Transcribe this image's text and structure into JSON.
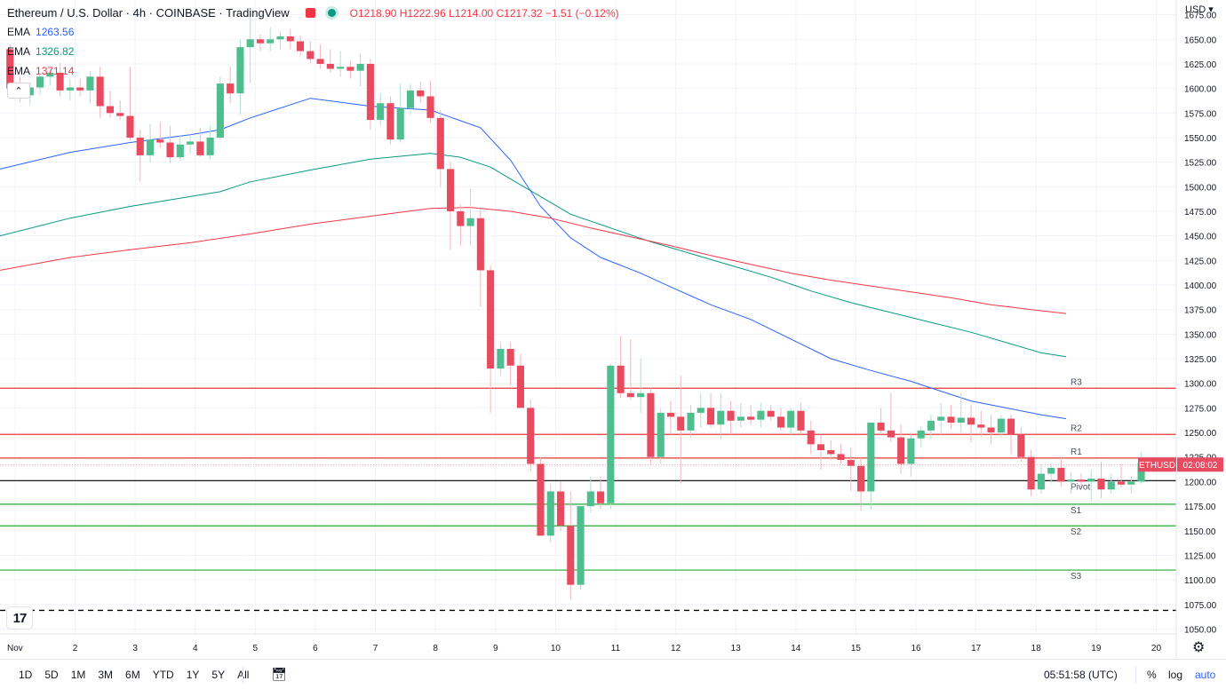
{
  "header": {
    "title": "Ethereum / U.S. Dollar · 4h · COINBASE · TradingView",
    "open": "O1218.90",
    "high": "H1222.96",
    "low": "L1214.00",
    "close": "C1217.32",
    "change": "−1.51 (−0.12%)"
  },
  "emas": [
    {
      "label": "EMA",
      "value": "1263.56",
      "color": "#2962ff"
    },
    {
      "label": "EMA",
      "value": "1326.82",
      "color": "#089981"
    },
    {
      "label": "EMA",
      "value": "1371.14",
      "color": "#f23645"
    }
  ],
  "currency_button": "USD",
  "logo_text": "17",
  "bottom_bar": {
    "timeframes": [
      "1D",
      "5D",
      "1M",
      "3M",
      "6M",
      "YTD",
      "1Y",
      "5Y",
      "All"
    ],
    "clock": "05:51:58 (UTC)",
    "percent": "%",
    "log": "log",
    "auto": "auto"
  },
  "price_label": {
    "symbol": "ETHUSD",
    "price": "1217.32",
    "countdown": "02:08:02"
  },
  "colors": {
    "up": "#26a69a",
    "up_fill": "#4fbe8f",
    "down": "#e84a5f",
    "ema_fast": "#2962ff",
    "ema_mid": "#089981",
    "ema_slow": "#f23645",
    "pivot": "#000000",
    "resistance": "#e53935",
    "support": "#22ab30"
  },
  "chart_data": {
    "type": "candlestick",
    "ylim": [
      1045,
      1690
    ],
    "y_ticks": [
      1050,
      1075,
      1100,
      1125,
      1150,
      1175,
      1200,
      1225,
      1250,
      1275,
      1300,
      1325,
      1350,
      1375,
      1400,
      1425,
      1450,
      1475,
      1500,
      1525,
      1550,
      1575,
      1600,
      1625,
      1650,
      1675
    ],
    "x_ticks": [
      "Nov",
      "2",
      "3",
      "4",
      "5",
      "6",
      "7",
      "8",
      "9",
      "10",
      "11",
      "12",
      "13",
      "14",
      "15",
      "16",
      "17",
      "18",
      "19",
      "20"
    ],
    "x_tick_pos": [
      0.5,
      6.5,
      12.5,
      18.5,
      24.5,
      30.5,
      36.5,
      42.5,
      48.5,
      54.5,
      60.5,
      66.5,
      72.5,
      78.5,
      84.5,
      90.5,
      96.5,
      102.5,
      108.5,
      114.5
    ],
    "x_range": [
      -1,
      116.5
    ],
    "levels": [
      {
        "name": "R3",
        "value": 1295,
        "kind": "resistance"
      },
      {
        "name": "R2",
        "value": 1248,
        "kind": "resistance"
      },
      {
        "name": "R1",
        "value": 1224,
        "kind": "resistance"
      },
      {
        "name": "Pivot",
        "value": 1201,
        "kind": "pivot"
      },
      {
        "name": "S1",
        "value": 1177,
        "kind": "support"
      },
      {
        "name": "S2",
        "value": 1155,
        "kind": "support"
      },
      {
        "name": "S3",
        "value": 1110,
        "kind": "support"
      }
    ],
    "dashed_level": 1069,
    "candles": [
      [
        1640,
        1645,
        1590,
        1600
      ],
      [
        1600,
        1612,
        1586,
        1593
      ],
      [
        1593,
        1606,
        1583,
        1601
      ],
      [
        1601,
        1614,
        1593,
        1612
      ],
      [
        1612,
        1620,
        1603,
        1616
      ],
      [
        1616,
        1626,
        1592,
        1598
      ],
      [
        1598,
        1610,
        1588,
        1601
      ],
      [
        1601,
        1610,
        1592,
        1598
      ],
      [
        1598,
        1618,
        1585,
        1612
      ],
      [
        1612,
        1622,
        1570,
        1582
      ],
      [
        1582,
        1598,
        1570,
        1575
      ],
      [
        1575,
        1588,
        1568,
        1572
      ],
      [
        1572,
        1622,
        1547,
        1550
      ],
      [
        1550,
        1558,
        1505,
        1532
      ],
      [
        1532,
        1564,
        1525,
        1548
      ],
      [
        1548,
        1566,
        1540,
        1545
      ],
      [
        1545,
        1562,
        1524,
        1530
      ],
      [
        1530,
        1552,
        1526,
        1543
      ],
      [
        1543,
        1554,
        1534,
        1546
      ],
      [
        1546,
        1560,
        1530,
        1532
      ],
      [
        1532,
        1562,
        1528,
        1550
      ],
      [
        1550,
        1612,
        1548,
        1605
      ],
      [
        1605,
        1622,
        1585,
        1595
      ],
      [
        1595,
        1650,
        1573,
        1642
      ],
      [
        1642,
        1678,
        1605,
        1650
      ],
      [
        1650,
        1655,
        1638,
        1646
      ],
      [
        1646,
        1662,
        1638,
        1650
      ],
      [
        1650,
        1658,
        1640,
        1653
      ],
      [
        1653,
        1660,
        1640,
        1648
      ],
      [
        1648,
        1654,
        1633,
        1638
      ],
      [
        1638,
        1648,
        1626,
        1630
      ],
      [
        1630,
        1645,
        1620,
        1625
      ],
      [
        1625,
        1640,
        1616,
        1620
      ],
      [
        1620,
        1638,
        1612,
        1622
      ],
      [
        1622,
        1628,
        1610,
        1618
      ],
      [
        1618,
        1635,
        1602,
        1625
      ],
      [
        1625,
        1630,
        1558,
        1568
      ],
      [
        1568,
        1595,
        1562,
        1585
      ],
      [
        1585,
        1592,
        1543,
        1548
      ],
      [
        1548,
        1605,
        1545,
        1580
      ],
      [
        1580,
        1604,
        1573,
        1598
      ],
      [
        1598,
        1607,
        1586,
        1592
      ],
      [
        1592,
        1608,
        1565,
        1570
      ],
      [
        1570,
        1578,
        1500,
        1518
      ],
      [
        1518,
        1525,
        1436,
        1475
      ],
      [
        1475,
        1482,
        1440,
        1460
      ],
      [
        1460,
        1498,
        1440,
        1468
      ],
      [
        1468,
        1478,
        1378,
        1415
      ],
      [
        1415,
        1420,
        1270,
        1315
      ],
      [
        1315,
        1342,
        1308,
        1335
      ],
      [
        1335,
        1342,
        1298,
        1318
      ],
      [
        1318,
        1330,
        1275,
        1275
      ],
      [
        1275,
        1283,
        1210,
        1218
      ],
      [
        1218,
        1225,
        1145,
        1145
      ],
      [
        1145,
        1198,
        1138,
        1190
      ],
      [
        1190,
        1200,
        1150,
        1155
      ],
      [
        1155,
        1190,
        1080,
        1095
      ],
      [
        1095,
        1175,
        1090,
        1175
      ],
      [
        1175,
        1205,
        1168,
        1190
      ],
      [
        1190,
        1205,
        1172,
        1178
      ],
      [
        1178,
        1320,
        1172,
        1318
      ],
      [
        1318,
        1348,
        1285,
        1290
      ],
      [
        1290,
        1345,
        1283,
        1286
      ],
      [
        1286,
        1325,
        1270,
        1290
      ],
      [
        1290,
        1295,
        1218,
        1225
      ],
      [
        1225,
        1275,
        1218,
        1270
      ],
      [
        1270,
        1282,
        1248,
        1266
      ],
      [
        1266,
        1308,
        1198,
        1252
      ],
      [
        1252,
        1278,
        1245,
        1270
      ],
      [
        1270,
        1290,
        1255,
        1275
      ],
      [
        1275,
        1290,
        1255,
        1258
      ],
      [
        1258,
        1290,
        1243,
        1272
      ],
      [
        1272,
        1282,
        1248,
        1262
      ],
      [
        1262,
        1280,
        1255,
        1266
      ],
      [
        1266,
        1278,
        1258,
        1263
      ],
      [
        1263,
        1280,
        1255,
        1272
      ],
      [
        1272,
        1278,
        1262,
        1266
      ],
      [
        1266,
        1275,
        1252,
        1255
      ],
      [
        1255,
        1275,
        1248,
        1272
      ],
      [
        1272,
        1280,
        1248,
        1252
      ],
      [
        1252,
        1262,
        1228,
        1238
      ],
      [
        1238,
        1248,
        1212,
        1232
      ],
      [
        1232,
        1242,
        1222,
        1228
      ],
      [
        1228,
        1238,
        1218,
        1222
      ],
      [
        1222,
        1235,
        1190,
        1216
      ],
      [
        1216,
        1225,
        1170,
        1190
      ],
      [
        1190,
        1260,
        1172,
        1260
      ],
      [
        1260,
        1275,
        1248,
        1252
      ],
      [
        1252,
        1290,
        1240,
        1245
      ],
      [
        1245,
        1258,
        1208,
        1218
      ],
      [
        1218,
        1250,
        1205,
        1244
      ],
      [
        1244,
        1256,
        1235,
        1252
      ],
      [
        1252,
        1268,
        1243,
        1262
      ],
      [
        1262,
        1280,
        1248,
        1266
      ],
      [
        1266,
        1278,
        1254,
        1260
      ],
      [
        1260,
        1290,
        1250,
        1265
      ],
      [
        1265,
        1278,
        1240,
        1258
      ],
      [
        1258,
        1272,
        1245,
        1255
      ],
      [
        1255,
        1268,
        1238,
        1250
      ],
      [
        1250,
        1268,
        1245,
        1264
      ],
      [
        1264,
        1268,
        1228,
        1248
      ],
      [
        1248,
        1255,
        1220,
        1225
      ],
      [
        1225,
        1232,
        1185,
        1192
      ],
      [
        1192,
        1218,
        1188,
        1208
      ],
      [
        1208,
        1218,
        1198,
        1214
      ],
      [
        1214,
        1225,
        1195,
        1200
      ],
      [
        1200,
        1210,
        1188,
        1202
      ],
      [
        1202,
        1208,
        1195,
        1200
      ],
      [
        1200,
        1212,
        1180,
        1203
      ],
      [
        1203,
        1220,
        1183,
        1192
      ],
      [
        1192,
        1208,
        1188,
        1200
      ],
      [
        1200,
        1218,
        1194,
        1197
      ],
      [
        1197,
        1205,
        1188,
        1200
      ],
      [
        1200,
        1230,
        1198,
        1219
      ],
      [
        1219,
        1223,
        1214,
        1217
      ]
    ],
    "ema_fast": [
      [
        -1,
        1518
      ],
      [
        6,
        1535
      ],
      [
        12,
        1545
      ],
      [
        18,
        1553
      ],
      [
        21,
        1558
      ],
      [
        24,
        1570
      ],
      [
        30,
        1590
      ],
      [
        36,
        1582
      ],
      [
        42,
        1578
      ],
      [
        47,
        1560
      ],
      [
        50,
        1527
      ],
      [
        53,
        1480
      ],
      [
        56,
        1448
      ],
      [
        59,
        1428
      ],
      [
        63,
        1412
      ],
      [
        66,
        1398
      ],
      [
        70,
        1380
      ],
      [
        74,
        1365
      ],
      [
        78,
        1345
      ],
      [
        82,
        1325
      ],
      [
        86,
        1313
      ],
      [
        90,
        1302
      ],
      [
        93,
        1292
      ],
      [
        96,
        1282
      ],
      [
        100,
        1274
      ],
      [
        103,
        1268
      ],
      [
        105.5,
        1264
      ]
    ],
    "ema_mid": [
      [
        -1,
        1450
      ],
      [
        6,
        1468
      ],
      [
        12,
        1480
      ],
      [
        18,
        1490
      ],
      [
        21,
        1495
      ],
      [
        24,
        1505
      ],
      [
        30,
        1517
      ],
      [
        36,
        1528
      ],
      [
        42,
        1534
      ],
      [
        45,
        1530
      ],
      [
        48,
        1520
      ],
      [
        52,
        1496
      ],
      [
        56,
        1472
      ],
      [
        60,
        1458
      ],
      [
        64,
        1444
      ],
      [
        68,
        1432
      ],
      [
        72,
        1420
      ],
      [
        76,
        1408
      ],
      [
        80,
        1394
      ],
      [
        84,
        1382
      ],
      [
        88,
        1372
      ],
      [
        92,
        1362
      ],
      [
        96,
        1352
      ],
      [
        100,
        1340
      ],
      [
        103,
        1331
      ],
      [
        105.5,
        1327
      ]
    ],
    "ema_slow": [
      [
        -1,
        1415
      ],
      [
        6,
        1428
      ],
      [
        12,
        1436
      ],
      [
        18,
        1443
      ],
      [
        24,
        1452
      ],
      [
        30,
        1462
      ],
      [
        36,
        1470
      ],
      [
        42,
        1478
      ],
      [
        46,
        1479
      ],
      [
        50,
        1475
      ],
      [
        54,
        1468
      ],
      [
        58,
        1458
      ],
      [
        62,
        1449
      ],
      [
        66,
        1440
      ],
      [
        70,
        1430
      ],
      [
        74,
        1421
      ],
      [
        78,
        1412
      ],
      [
        82,
        1405
      ],
      [
        86,
        1399
      ],
      [
        90,
        1393
      ],
      [
        94,
        1387
      ],
      [
        98,
        1380
      ],
      [
        102,
        1375
      ],
      [
        105.5,
        1371
      ]
    ]
  }
}
